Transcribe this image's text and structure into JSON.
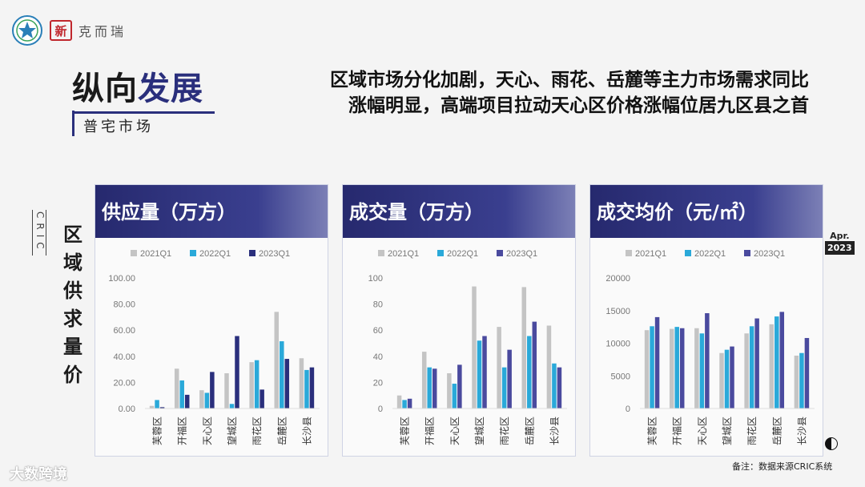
{
  "brand": {
    "logo_seal": "新",
    "name": "克而瑞"
  },
  "title": {
    "main_part1": "纵向",
    "main_part2": "发展",
    "sub": "普宅市场"
  },
  "headline": {
    "line1": "区域市场分化加剧，天心、雨花、岳麓等主力市场需求同比",
    "line2": "涨幅明显，高端项目拉动天心区价格涨幅位居九区县之首"
  },
  "side": {
    "cric": "CRIC",
    "label": "区域供求量价"
  },
  "date_badge": {
    "month": "Apr.",
    "year": "2023"
  },
  "footnote": "备注：数据来源CRIC系统",
  "watermark": "大数跨境",
  "colors": {
    "s2021": "#c4c4c4",
    "s2022": "#2aa9d9",
    "s2023": "#2a2f7c",
    "s2023_b": "#4a4a9e"
  },
  "chart_data": [
    {
      "type": "bar",
      "title": "供应量（万方）",
      "categories": [
        "芙蓉区",
        "开福区",
        "天心区",
        "望城区",
        "雨花区",
        "岳麓区",
        "长沙县"
      ],
      "series": [
        {
          "name": "2021Q1",
          "values": [
            2,
            30.5,
            14,
            27,
            35.5,
            74,
            38.5
          ]
        },
        {
          "name": "2022Q1",
          "values": [
            6.5,
            21.5,
            12,
            3.5,
            37,
            51.5,
            29.5
          ]
        },
        {
          "name": "2023Q1",
          "values": [
            1,
            10.5,
            28,
            55.5,
            14.5,
            38,
            31.5
          ]
        }
      ],
      "yticks": [
        "0.00",
        "20.00",
        "40.00",
        "60.00",
        "80.00",
        "100.00"
      ],
      "ylim": [
        0,
        100
      ]
    },
    {
      "type": "bar",
      "title": "成交量（万方）",
      "categories": [
        "芙蓉区",
        "开福区",
        "天心区",
        "望城区",
        "雨花区",
        "岳麓区",
        "长沙县"
      ],
      "series": [
        {
          "name": "2021Q1",
          "values": [
            10,
            43.5,
            27,
            93.5,
            62.5,
            93,
            63.5
          ]
        },
        {
          "name": "2022Q1",
          "values": [
            6.5,
            31.5,
            19,
            52,
            31.5,
            55.5,
            34.5
          ]
        },
        {
          "name": "2023Q1",
          "values": [
            7.5,
            30.5,
            33.5,
            55.5,
            45,
            66.5,
            31.5
          ]
        }
      ],
      "yticks": [
        "0",
        "20",
        "40",
        "60",
        "80",
        "100"
      ],
      "ylim": [
        0,
        100
      ]
    },
    {
      "type": "bar",
      "title": "成交均价（元/㎡）",
      "categories": [
        "芙蓉区",
        "开福区",
        "天心区",
        "望城区",
        "雨花区",
        "岳麓区",
        "长沙县"
      ],
      "series": [
        {
          "name": "2021Q1",
          "values": [
            12000,
            12200,
            12300,
            8500,
            11500,
            12900,
            8100
          ]
        },
        {
          "name": "2022Q1",
          "values": [
            12600,
            12500,
            11500,
            9000,
            12600,
            14100,
            8500
          ]
        },
        {
          "name": "2023Q1",
          "values": [
            14000,
            12300,
            14600,
            9500,
            13800,
            14800,
            10800
          ]
        }
      ],
      "yticks": [
        "0",
        "5000",
        "10000",
        "15000",
        "20000"
      ],
      "ylim": [
        0,
        20000
      ]
    }
  ]
}
